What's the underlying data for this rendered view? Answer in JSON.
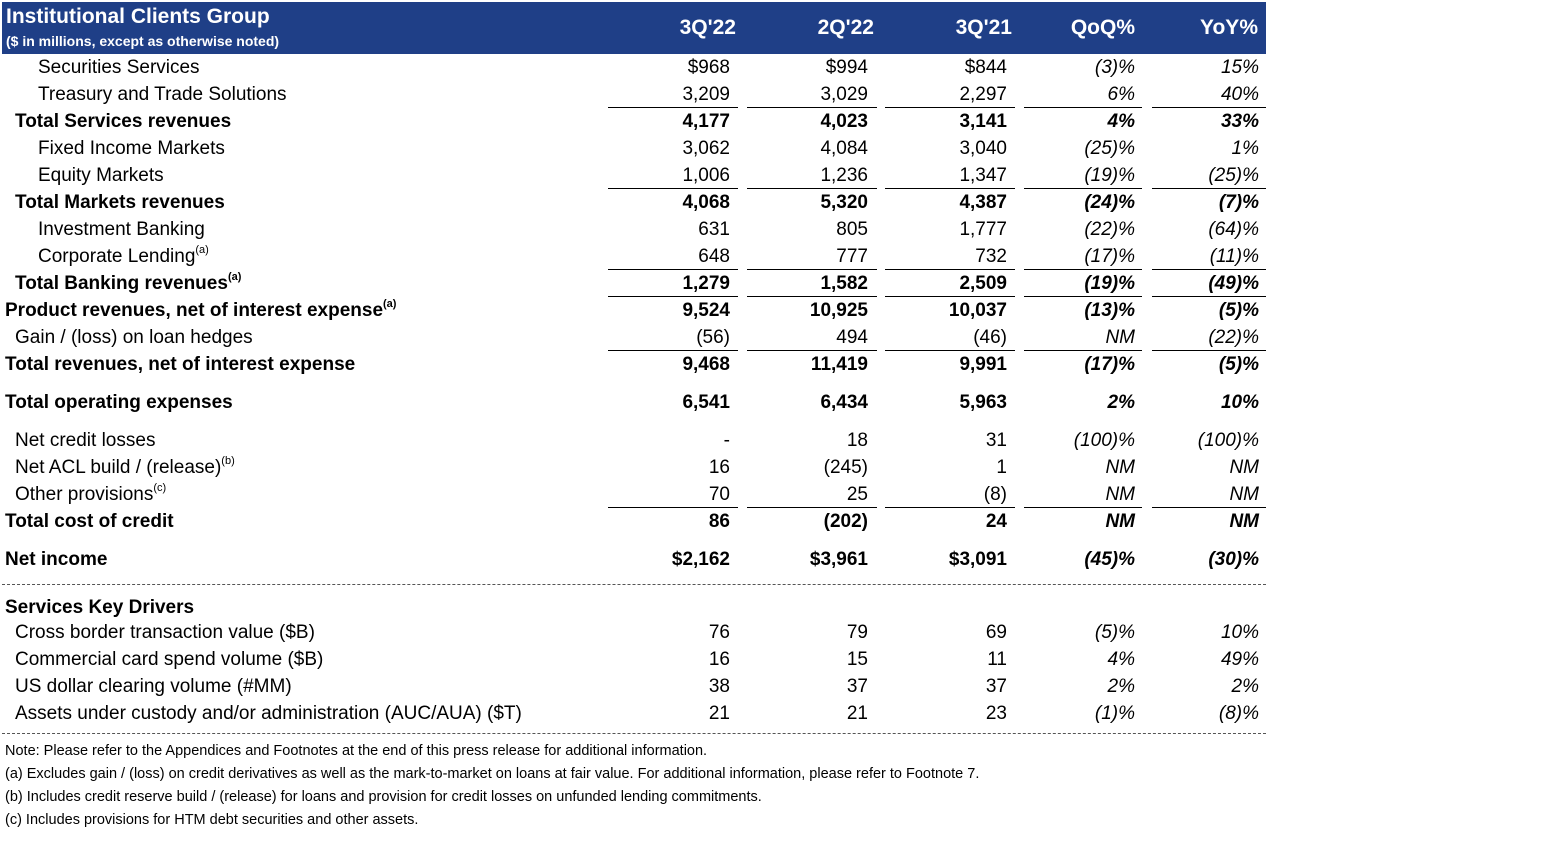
{
  "header": {
    "title": "Institutional Clients Group",
    "subtitle": "($ in millions, except as otherwise noted)",
    "columns": [
      "3Q'22",
      "2Q'22",
      "3Q'21",
      "QoQ%",
      "YoY%"
    ]
  },
  "rows": [
    {
      "label": "Securities Services",
      "indent": 2,
      "bold": false,
      "vals": [
        "$968",
        "$994",
        "$844",
        "(3)%",
        "15%"
      ]
    },
    {
      "label": "Treasury and Trade Solutions",
      "indent": 2,
      "bold": false,
      "under": true,
      "vals": [
        "3,209",
        "3,029",
        "2,297",
        "6%",
        "40%"
      ]
    },
    {
      "label": "Total Services revenues",
      "indent": 1,
      "bold": true,
      "vals": [
        "4,177",
        "4,023",
        "3,141",
        "4%",
        "33%"
      ]
    },
    {
      "label": "Fixed Income Markets",
      "indent": 2,
      "bold": false,
      "vals": [
        "3,062",
        "4,084",
        "3,040",
        "(25)%",
        "1%"
      ]
    },
    {
      "label": "Equity Markets",
      "indent": 2,
      "bold": false,
      "under": true,
      "vals": [
        "1,006",
        "1,236",
        "1,347",
        "(19)%",
        "(25)%"
      ]
    },
    {
      "label": "Total Markets revenues",
      "indent": 1,
      "bold": true,
      "vals": [
        "4,068",
        "5,320",
        "4,387",
        "(24)%",
        "(7)%"
      ]
    },
    {
      "label": "Investment Banking",
      "indent": 2,
      "bold": false,
      "vals": [
        "631",
        "805",
        "1,777",
        "(22)%",
        "(64)%"
      ]
    },
    {
      "label": "Corporate Lending",
      "sup": "(a)",
      "indent": 2,
      "bold": false,
      "under": true,
      "vals": [
        "648",
        "777",
        "732",
        "(17)%",
        "(11)%"
      ]
    },
    {
      "label": "Total Banking revenues",
      "sup": "(a)",
      "indent": 1,
      "bold": true,
      "under": true,
      "vals": [
        "1,279",
        "1,582",
        "2,509",
        "(19)%",
        "(49)%"
      ]
    },
    {
      "label": "Product revenues, net of interest expense",
      "sup": "(a)",
      "indent": 0,
      "bold": true,
      "vals": [
        "9,524",
        "10,925",
        "10,037",
        "(13)%",
        "(5)%"
      ]
    },
    {
      "label": "Gain / (loss) on loan hedges",
      "indent": 1,
      "bold": false,
      "under": true,
      "vals": [
        "(56)",
        "494",
        "(46)",
        "NM",
        "(22)%"
      ]
    },
    {
      "label": "Total revenues, net of interest expense",
      "indent": 0,
      "bold": true,
      "vals": [
        "9,468",
        "11,419",
        "9,991",
        "(17)%",
        "(5)%"
      ]
    },
    {
      "label": "Total operating expenses",
      "indent": 0,
      "bold": true,
      "gap": true,
      "vals": [
        "6,541",
        "6,434",
        "5,963",
        "2%",
        "10%"
      ]
    },
    {
      "label": "Net credit losses",
      "indent": 1,
      "bold": false,
      "gap": true,
      "vals": [
        "-",
        "18",
        "31",
        "(100)%",
        "(100)%"
      ]
    },
    {
      "label": "Net ACL build / (release)",
      "sup": "(b)",
      "indent": 1,
      "bold": false,
      "vals": [
        "16",
        "(245)",
        "1",
        "NM",
        "NM"
      ]
    },
    {
      "label": "Other provisions",
      "sup": "(c)",
      "indent": 1,
      "bold": false,
      "under": true,
      "vals": [
        "70",
        "25",
        "(8)",
        "NM",
        "NM"
      ]
    },
    {
      "label": "Total cost of credit",
      "indent": 0,
      "bold": true,
      "vals": [
        "86",
        "(202)",
        "24",
        "NM",
        "NM"
      ]
    },
    {
      "label": "Net income",
      "indent": 0,
      "bold": true,
      "gap": true,
      "vals": [
        "$2,162",
        "$3,961",
        "$3,091",
        "(45)%",
        "(30)%"
      ]
    }
  ],
  "drivers_title": "Services Key Drivers",
  "drivers": [
    {
      "label": "Cross border transaction value ($B)",
      "vals": [
        "76",
        "79",
        "69",
        "(5)%",
        "10%"
      ]
    },
    {
      "label": "Commercial card spend volume ($B)",
      "vals": [
        "16",
        "15",
        "11",
        "4%",
        "49%"
      ]
    },
    {
      "label": "US dollar clearing volume (#MM)",
      "vals": [
        "38",
        "37",
        "37",
        "2%",
        "2%"
      ]
    },
    {
      "label": "Assets under custody and/or administration (AUC/AUA) ($T)",
      "vals": [
        "21",
        "21",
        "23",
        "(1)%",
        "(8)%"
      ]
    }
  ],
  "notes": [
    "Note:  Please refer to the Appendices and Footnotes at the end of this press release for additional information.",
    "(a) Excludes gain / (loss) on credit derivatives as well as the mark-to-market on loans at fair value. For additional information, please refer to Footnote 7.",
    "(b) Includes credit reserve build / (release) for loans and provision for credit losses on unfunded lending commitments.",
    "(c) Includes provisions for HTM debt securities and other assets."
  ]
}
